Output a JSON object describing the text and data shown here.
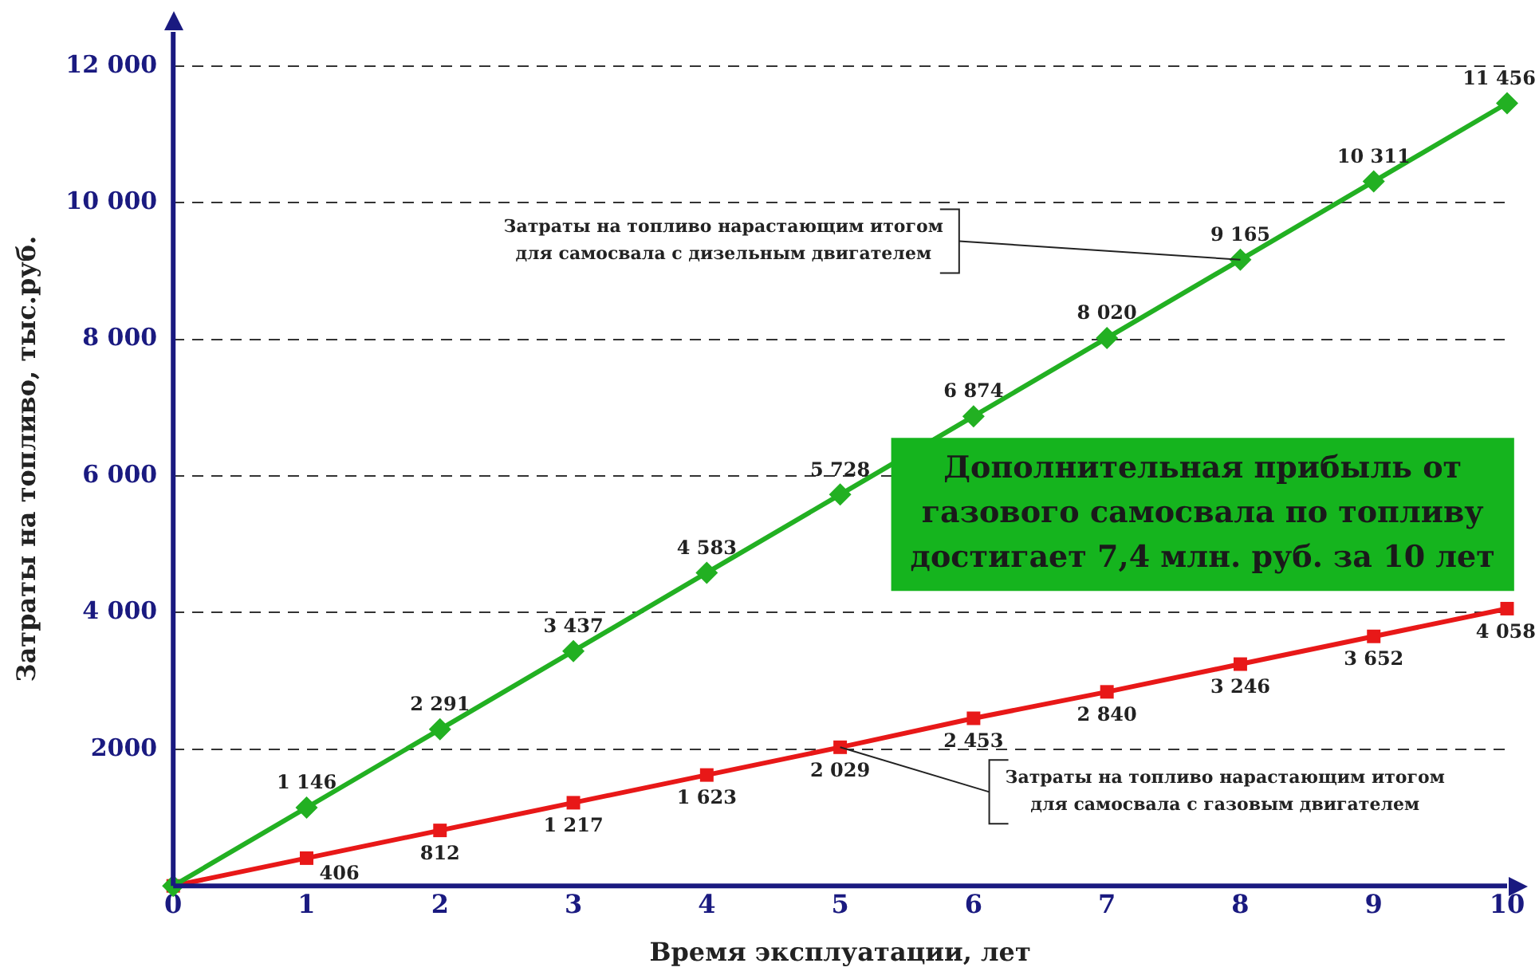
{
  "chart_data": {
    "type": "line",
    "xlabel": "Время эксплуатации, лет",
    "ylabel": "Затраты на топливо, тыс.руб.",
    "x": [
      0,
      1,
      2,
      3,
      4,
      5,
      6,
      7,
      8,
      9,
      10
    ],
    "series": [
      {
        "name": "Затраты на топливо нарастающим итогом\nдля самосвала с дизельным двигателем",
        "color": "#22b022",
        "marker": "diamond",
        "values": [
          0,
          1146,
          2291,
          3437,
          4583,
          5728,
          6874,
          8020,
          9165,
          10311,
          11456
        ],
        "value_labels": [
          null,
          "1 146",
          "2 291",
          "3 437",
          "4 583",
          "5 728",
          "6 874",
          "8 020",
          "9 165",
          "10 311",
          "11 456"
        ]
      },
      {
        "name": "Затраты на топливо нарастающим итогом\nдля самосвала с газовым двигателем",
        "color": "#e81818",
        "marker": "square",
        "values": [
          0,
          406,
          812,
          1217,
          1623,
          2029,
          2453,
          2840,
          3246,
          3652,
          4058
        ],
        "value_labels": [
          null,
          "406",
          "812",
          "1 217",
          "1 623",
          "2 029",
          "2 453",
          "2 840",
          "3 246",
          "3 652",
          "4 058"
        ]
      }
    ],
    "xlim": [
      0,
      10
    ],
    "xticks": [
      0,
      1,
      2,
      3,
      4,
      5,
      6,
      7,
      8,
      9,
      10
    ],
    "ylim": [
      0,
      12500
    ],
    "yticks": [
      {
        "value": 2000,
        "label": "2000"
      },
      {
        "value": 4000,
        "label": "4 000"
      },
      {
        "value": 6000,
        "label": "6 000"
      },
      {
        "value": 8000,
        "label": "8 000"
      },
      {
        "value": 10000,
        "label": "10 000"
      },
      {
        "value": 12000,
        "label": "12 000"
      }
    ],
    "grid": "y",
    "legend": false,
    "annotations": [
      "Дополнительная прибыль от\nгазового самосвала по топливу\nдостигает 7,4 млн. руб. за 10 лет"
    ]
  }
}
